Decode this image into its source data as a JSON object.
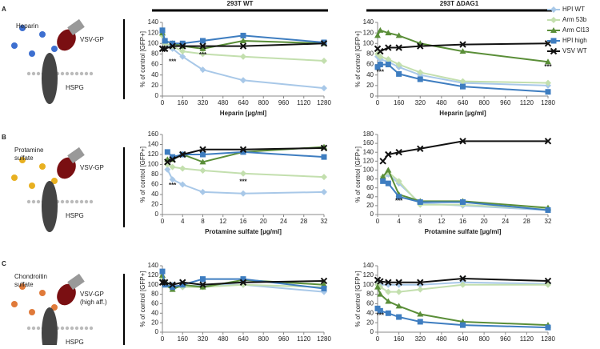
{
  "figure": {
    "column_titles": [
      "293T WT",
      "293T ΔDAG1"
    ],
    "panels": [
      {
        "letter": "A",
        "ligand_lines": [
          "Heparin"
        ],
        "virus_lines": [
          "VSV-GP"
        ],
        "receptor": "HSPG"
      },
      {
        "letter": "B",
        "ligand_lines": [
          "Protamine",
          "sulfate"
        ],
        "virus_lines": [
          "VSV-GP"
        ],
        "receptor": "HSPG"
      },
      {
        "letter": "C",
        "ligand_lines": [
          "Chondroitin",
          "sulfate"
        ],
        "virus_lines": [
          "VSV-GP",
          "(high aff.)"
        ],
        "receptor": "HSPG"
      }
    ]
  },
  "chart_data": [
    {
      "type": "line",
      "xlabel": "Heparin [µg/ml]",
      "ylabel": "% of control [GFP+]",
      "x": [
        0,
        20,
        80,
        160,
        320,
        640,
        1280
      ],
      "xlim": [
        0,
        1280
      ],
      "xticks": [
        0,
        160,
        320,
        480,
        640,
        800,
        960,
        1120,
        1280
      ],
      "ylim": [
        0,
        140
      ],
      "yticks": [
        0,
        20,
        40,
        60,
        80,
        100,
        120,
        140
      ],
      "series": [
        {
          "name": "HPI WT",
          "color": "#a8c8e8",
          "marker": "diamond",
          "values": [
            120,
            100,
            90,
            75,
            50,
            30,
            15
          ]
        },
        {
          "name": "Arm 53b",
          "color": "#c3dfae",
          "marker": "diamond",
          "values": [
            115,
            100,
            95,
            85,
            80,
            75,
            67
          ]
        },
        {
          "name": "Arm Cl13",
          "color": "#5a8e38",
          "marker": "triangle",
          "values": [
            120,
            105,
            100,
            95,
            90,
            105,
            100
          ]
        },
        {
          "name": "HPI high",
          "color": "#3e7dc0",
          "marker": "square",
          "values": [
            125,
            105,
            100,
            100,
            105,
            115,
            102
          ]
        },
        {
          "name": "VSV WT",
          "color": "#111111",
          "marker": "cross",
          "values": [
            90,
            90,
            95,
            95,
            95,
            95,
            100
          ]
        }
      ],
      "annotations": [
        {
          "text": "***",
          "x": 80,
          "y": 65
        },
        {
          "text": "***",
          "x": 320,
          "y": 78
        }
      ]
    },
    {
      "type": "line",
      "xlabel": "Heparin [µg/ml]",
      "ylabel": "% of control [GFP+]",
      "x": [
        0,
        20,
        80,
        160,
        320,
        640,
        1280
      ],
      "xlim": [
        0,
        1280
      ],
      "xticks": [
        0,
        160,
        320,
        480,
        640,
        800,
        960,
        1120,
        1280
      ],
      "ylim": [
        0,
        140
      ],
      "yticks": [
        0,
        20,
        40,
        60,
        80,
        100,
        120,
        140
      ],
      "legend": true,
      "series": [
        {
          "color": "#a8c8e8",
          "marker": "diamond",
          "values": [
            75,
            70,
            65,
            55,
            40,
            25,
            20
          ]
        },
        {
          "color": "#c3dfae",
          "marker": "diamond",
          "values": [
            80,
            75,
            70,
            60,
            45,
            28,
            25
          ]
        },
        {
          "color": "#5a8e38",
          "marker": "triangle",
          "values": [
            115,
            125,
            120,
            115,
            100,
            85,
            65
          ]
        },
        {
          "color": "#3e7dc0",
          "marker": "square",
          "values": [
            55,
            60,
            60,
            42,
            32,
            18,
            8
          ]
        },
        {
          "color": "#111111",
          "marker": "cross",
          "values": [
            90,
            85,
            92,
            92,
            95,
            98,
            100
          ]
        }
      ],
      "annotations": [
        {
          "text": "***",
          "x": 20,
          "y": 45
        },
        {
          "text": "***",
          "x": 1280,
          "y": 55
        }
      ]
    },
    {
      "type": "line",
      "xlabel": "Protamine sulfate [µg/ml]",
      "ylabel": "% of control [GFP+]",
      "x": [
        1,
        2,
        4,
        8,
        16,
        32
      ],
      "xlim": [
        0,
        32
      ],
      "xticks": [
        0,
        4,
        8,
        12,
        16,
        20,
        24,
        28,
        32
      ],
      "ylim": [
        0,
        160
      ],
      "yticks": [
        0,
        20,
        40,
        60,
        80,
        100,
        120,
        140,
        160
      ],
      "series": [
        {
          "color": "#a8c8e8",
          "marker": "diamond",
          "values": [
            90,
            70,
            60,
            45,
            42,
            45
          ]
        },
        {
          "color": "#c3dfae",
          "marker": "diamond",
          "values": [
            100,
            95,
            92,
            88,
            82,
            75
          ]
        },
        {
          "color": "#5a8e38",
          "marker": "triangle",
          "values": [
            110,
            110,
            120,
            105,
            125,
            135
          ]
        },
        {
          "color": "#3e7dc0",
          "marker": "square",
          "values": [
            125,
            115,
            120,
            120,
            125,
            115
          ]
        },
        {
          "color": "#111111",
          "marker": "cross",
          "values": [
            105,
            110,
            120,
            130,
            130,
            133
          ]
        }
      ],
      "annotations": [
        {
          "text": "***",
          "x": 2,
          "y": 58
        },
        {
          "text": "***",
          "x": 16,
          "y": 65
        }
      ]
    },
    {
      "type": "line",
      "xlabel": "Protamine sulfate [µg/ml]",
      "ylabel": "% of control [GFP+]",
      "x": [
        1,
        2,
        4,
        8,
        16,
        32
      ],
      "xlim": [
        0,
        32
      ],
      "xticks": [
        0,
        4,
        8,
        12,
        16,
        20,
        24,
        28,
        32
      ],
      "ylim": [
        0,
        180
      ],
      "yticks": [
        0,
        20,
        40,
        60,
        80,
        100,
        120,
        140,
        160,
        180
      ],
      "series": [
        {
          "color": "#a8c8e8",
          "marker": "diamond",
          "values": [
            80,
            90,
            70,
            25,
            20,
            10
          ]
        },
        {
          "color": "#c3dfae",
          "marker": "diamond",
          "values": [
            85,
            95,
            75,
            22,
            22,
            12
          ]
        },
        {
          "color": "#5a8e38",
          "marker": "triangle",
          "values": [
            85,
            100,
            45,
            30,
            30,
            15
          ]
        },
        {
          "color": "#3e7dc0",
          "marker": "square",
          "values": [
            75,
            70,
            40,
            28,
            28,
            10
          ]
        },
        {
          "color": "#111111",
          "marker": "cross",
          "values": [
            120,
            135,
            140,
            148,
            165,
            165
          ]
        }
      ],
      "annotations": [
        {
          "text": "***",
          "x": 4,
          "y": 30
        }
      ]
    },
    {
      "type": "line",
      "xlabel": "Chondroitin sulfate [µg/ml]",
      "ylabel": "% of control [GFP+]",
      "x": [
        0,
        20,
        80,
        160,
        320,
        640,
        1280
      ],
      "xlim": [
        0,
        1280
      ],
      "xticks": [
        0,
        160,
        320,
        480,
        640,
        800,
        960,
        1120,
        1280
      ],
      "ylim": [
        0,
        140
      ],
      "yticks": [
        0,
        20,
        40,
        60,
        80,
        100,
        120,
        140
      ],
      "series": [
        {
          "color": "#a8c8e8",
          "marker": "diamond",
          "values": [
            110,
            105,
            100,
            95,
            100,
            100,
            85
          ]
        },
        {
          "color": "#c3dfae",
          "marker": "diamond",
          "values": [
            115,
            105,
            95,
            95,
            95,
            100,
            95
          ]
        },
        {
          "color": "#5a8e38",
          "marker": "triangle",
          "values": [
            120,
            100,
            90,
            100,
            95,
            110,
            100
          ]
        },
        {
          "color": "#3e7dc0",
          "marker": "square",
          "values": [
            128,
            100,
            95,
            100,
            112,
            112,
            92
          ]
        },
        {
          "color": "#111111",
          "marker": "cross",
          "values": [
            105,
            105,
            100,
            105,
            100,
            105,
            108
          ]
        }
      ],
      "annotations": []
    },
    {
      "type": "line",
      "xlabel": "Chondroitin sulfate [µg/ml]",
      "ylabel": "% of control [GFP+]",
      "x": [
        0,
        20,
        80,
        160,
        320,
        640,
        1280
      ],
      "xlim": [
        0,
        1280
      ],
      "xticks": [
        0,
        160,
        320,
        480,
        640,
        800,
        960,
        1120,
        1280
      ],
      "ylim": [
        0,
        140
      ],
      "yticks": [
        0,
        20,
        40,
        60,
        80,
        100,
        120,
        140
      ],
      "series": [
        {
          "color": "#a8c8e8",
          "marker": "diamond",
          "values": [
            105,
            100,
            100,
            100,
            100,
            105,
            102
          ]
        },
        {
          "color": "#c3dfae",
          "marker": "diamond",
          "values": [
            100,
            95,
            85,
            85,
            90,
            100,
            100
          ]
        },
        {
          "color": "#5a8e38",
          "marker": "triangle",
          "values": [
            95,
            80,
            65,
            55,
            38,
            22,
            15
          ]
        },
        {
          "color": "#3e7dc0",
          "marker": "square",
          "values": [
            50,
            45,
            40,
            32,
            22,
            15,
            10
          ]
        },
        {
          "color": "#111111",
          "marker": "cross",
          "values": [
            110,
            107,
            105,
            105,
            105,
            113,
            108
          ]
        }
      ],
      "annotations": [
        {
          "text": "***",
          "x": 20,
          "y": 35
        }
      ]
    }
  ]
}
